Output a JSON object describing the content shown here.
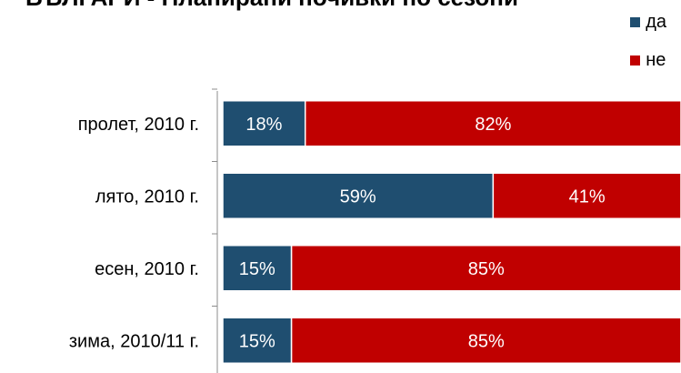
{
  "chart_data": {
    "type": "bar",
    "orientation": "horizontal",
    "stacked": true,
    "title": "БЪЛГАРИ - Планирани почивки по сезони",
    "categories": [
      "пролет, 2010 г.",
      "лято, 2010 г.",
      "есен, 2010 г.",
      "зима, 2010/11 г."
    ],
    "series": [
      {
        "name": "да",
        "values": [
          18,
          59,
          15,
          15
        ],
        "color": "#1f4e70"
      },
      {
        "name": "не",
        "values": [
          82,
          41,
          85,
          85
        ],
        "color": "#c00000"
      }
    ],
    "value_labels": [
      [
        "18%",
        "82%"
      ],
      [
        "59%",
        "41%"
      ],
      [
        "15%",
        "85%"
      ],
      [
        "15%",
        "85%"
      ]
    ],
    "xlim": [
      0,
      100
    ],
    "legend_position": "top-right",
    "grid": false
  }
}
